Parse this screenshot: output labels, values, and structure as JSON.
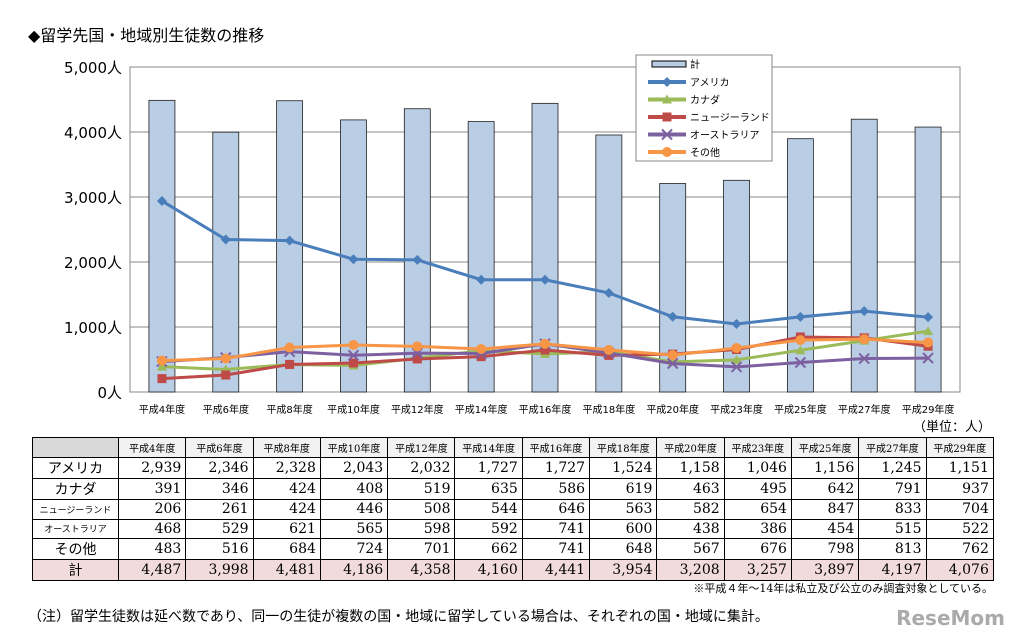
{
  "title": "◆留学先国・地域別生徒数の推移",
  "unit": "（単位：人）",
  "note_private": "※平成４年～14年は私立及び公立のみ調査対象としている。",
  "note_main": "（注）留学生徒数は延べ数であり、同一の生徒が複数の国・地域に留学している場合は、それぞれの国・地域に集計。",
  "watermark": "ReseMom",
  "chart_data": {
    "type": "bar+line",
    "categories": [
      "平成4年度",
      "平成6年度",
      "平成8年度",
      "平成10年度",
      "平成12年度",
      "平成14年度",
      "平成16年度",
      "平成18年度",
      "平成20年度",
      "平成23年度",
      "平成25年度",
      "平成27年度",
      "平成29年度"
    ],
    "ylim": [
      0,
      5000
    ],
    "yticks": [
      "0人",
      "1,000人",
      "2,000人",
      "3,000人",
      "4,000人",
      "5,000人"
    ],
    "ytick_values": [
      0,
      1000,
      2000,
      3000,
      4000,
      5000
    ],
    "grid": true,
    "legend_position": "top-right",
    "bar_series": {
      "name": "計",
      "color": "#b9cde5",
      "values": [
        4487,
        3998,
        4481,
        4186,
        4358,
        4160,
        4441,
        3954,
        3208,
        3257,
        3897,
        4197,
        4076
      ],
      "labels": [
        "4,487",
        "3,998",
        "4,481",
        "4,186",
        "4,358",
        "4,160",
        "4,441",
        "3,954",
        "3,208",
        "3,257",
        "3,897",
        "4,197",
        "4,076"
      ]
    },
    "series": [
      {
        "name": "アメリカ",
        "color": "#4a7ebb",
        "marker": "diamond",
        "values": [
          2939,
          2346,
          2328,
          2043,
          2032,
          1727,
          1727,
          1524,
          1158,
          1046,
          1156,
          1245,
          1151
        ],
        "labels": [
          "2,939",
          "2,346",
          "2,328",
          "2,043",
          "2,032",
          "1,727",
          "1,727",
          "1,524",
          "1,158",
          "1,046",
          "1,156",
          "1,245",
          "1,151"
        ]
      },
      {
        "name": "カナダ",
        "color": "#9bbb59",
        "marker": "triangle",
        "values": [
          391,
          346,
          424,
          408,
          519,
          635,
          586,
          619,
          463,
          495,
          642,
          791,
          937
        ]
      },
      {
        "name": "ニュージーランド",
        "color": "#be4b48",
        "marker": "square",
        "values": [
          206,
          261,
          424,
          446,
          508,
          544,
          646,
          563,
          582,
          654,
          847,
          833,
          704
        ]
      },
      {
        "name": "オーストラリア",
        "color": "#7d60a0",
        "marker": "x",
        "values": [
          468,
          529,
          621,
          565,
          598,
          592,
          741,
          600,
          438,
          386,
          454,
          515,
          522
        ]
      },
      {
        "name": "その他",
        "color": "#f79646",
        "marker": "circle",
        "values": [
          483,
          516,
          684,
          724,
          701,
          662,
          741,
          648,
          567,
          676,
          798,
          813,
          762
        ]
      }
    ]
  }
}
